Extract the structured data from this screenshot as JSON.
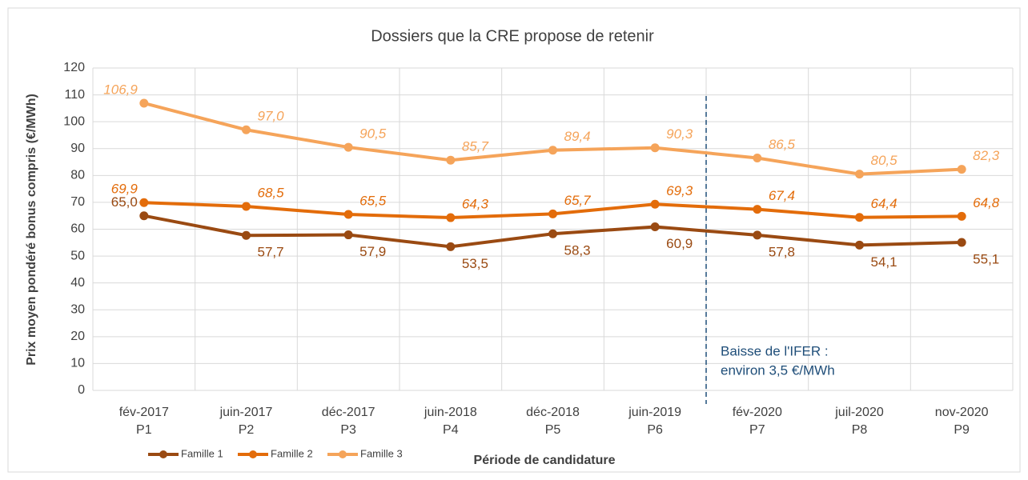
{
  "chart_data": {
    "type": "line",
    "title": "Dossiers que la CRE propose de retenir",
    "y_label": "Prix moyen pondéré bonus compris (€/MWh)",
    "x_label": "Période de candidature",
    "categories": [
      [
        "fév-2017",
        "P1"
      ],
      [
        "juin-2017",
        "P2"
      ],
      [
        "déc-2017",
        "P3"
      ],
      [
        "juin-2018",
        "P4"
      ],
      [
        "déc-2018",
        "P5"
      ],
      [
        "juin-2019",
        "P6"
      ],
      [
        "fév-2020",
        "P7"
      ],
      [
        "juil-2020",
        "P8"
      ],
      [
        "nov-2020",
        "P9"
      ]
    ],
    "series": [
      {
        "name": "Famille 1",
        "color": "#9a4a12",
        "values": [
          65.0,
          57.7,
          57.9,
          53.5,
          58.3,
          60.9,
          57.8,
          54.1,
          55.1
        ],
        "value_labels": [
          "65,0",
          "57,7",
          "57,9",
          "53,5",
          "58,3",
          "60,9",
          "57,8",
          "54,1",
          "55,1"
        ]
      },
      {
        "name": "Famille 2",
        "color": "#e36c0a",
        "values": [
          69.9,
          68.5,
          65.5,
          64.3,
          65.7,
          69.3,
          67.4,
          64.4,
          64.8
        ],
        "value_labels": [
          "69,9",
          "68,5",
          "65,5",
          "64,3",
          "65,7",
          "69,3",
          "67,4",
          "64,4",
          "64,8"
        ]
      },
      {
        "name": "Famille 3",
        "color": "#f5a45a",
        "values": [
          106.9,
          97.0,
          90.5,
          85.7,
          89.4,
          90.3,
          86.5,
          80.5,
          82.3
        ],
        "value_labels": [
          "106,9",
          "97,0",
          "90,5",
          "85,7",
          "89,4",
          "90,3",
          "86,5",
          "80,5",
          "82,3"
        ]
      }
    ],
    "annotation": [
      "Baisse de l'IFER :",
      "environ 3,5 €/MWh"
    ],
    "ylim": [
      0,
      120
    ],
    "yticks": [
      0,
      10,
      20,
      30,
      40,
      50,
      60,
      70,
      80,
      90,
      100,
      110,
      120
    ],
    "grid": true,
    "legend": "bottom-left"
  }
}
